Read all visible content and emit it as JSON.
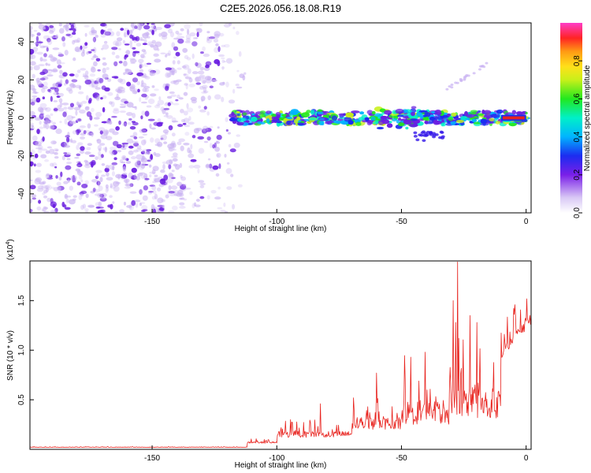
{
  "title": "C2E5.2026.056.18.08.R19",
  "colors": {
    "axis": "#000000",
    "snr_line": "#e8231e",
    "scatter_dense": "#6a1ee0",
    "scatter_light": "#c9b2f2",
    "band_core": "#e8231e"
  },
  "chart_data": [
    {
      "type": "heatmap",
      "name": "spectrogram",
      "title": "C2E5.2026.056.18.08.R19",
      "xlabel": "Height of straight line (km)",
      "ylabel": "Frequency (Hz)",
      "xlim": [
        -199,
        2
      ],
      "ylim": [
        -50,
        50
      ],
      "xticks": [
        "-150",
        "-100",
        "-50",
        "0"
      ],
      "xtick_values": [
        -150,
        -100,
        -50,
        0
      ],
      "yticks": [
        "-40",
        "-20",
        "0",
        "20",
        "40"
      ],
      "ytick_values": [
        -40,
        -20,
        0,
        20,
        40
      ],
      "colorbar": {
        "label": "Normalized spectral amplitude",
        "range": [
          0,
          1
        ],
        "ticks": [
          "0.0",
          "0.2",
          "0.4",
          "0.6",
          "0.8"
        ],
        "tick_values": [
          0.0,
          0.2,
          0.4,
          0.6,
          0.8
        ]
      },
      "features": {
        "noise_region_x": [
          -199,
          -112
        ],
        "signal_band_x": [
          -118,
          0
        ],
        "signal_band_freq_hz": 0,
        "peak_x": [
          -10,
          0
        ],
        "peak_amplitude": 1.0,
        "secondary_trace_x": [
          -32,
          -15
        ],
        "secondary_trace_freq_hz": [
          15,
          29
        ]
      }
    },
    {
      "type": "line",
      "name": "snr",
      "xlabel": "Height of straight line (km)",
      "ylabel": "SNR (10 * v/v)",
      "yscale_label": "(x10",
      "yscale_exp": "4",
      "xlim": [
        -199,
        2
      ],
      "ylim": [
        0,
        1.9
      ],
      "xticks": [
        "-150",
        "-100",
        "-50",
        "0"
      ],
      "xtick_values": [
        -150,
        -100,
        -50,
        0
      ],
      "yticks": [
        "0.5",
        "1.0",
        "1.5"
      ],
      "ytick_values": [
        0.5,
        1.0,
        1.5
      ],
      "segments": [
        {
          "x": [
            -199,
            -112
          ],
          "baseline": 0.02,
          "noise": 0.008
        },
        {
          "x": [
            -112,
            -100
          ],
          "baseline": 0.06,
          "noise": 0.05
        },
        {
          "x": [
            -100,
            -70
          ],
          "baseline": 0.12,
          "noise": 0.18
        },
        {
          "x": [
            -70,
            -50
          ],
          "baseline": 0.2,
          "noise": 0.35
        },
        {
          "x": [
            -50,
            -30
          ],
          "baseline": 0.25,
          "noise": 0.7
        },
        {
          "x": [
            -30,
            -10
          ],
          "baseline": 0.3,
          "noise": 0.9
        },
        {
          "x": [
            -10,
            2
          ],
          "baseline": 0.9,
          "noise": 0.4
        }
      ],
      "peaks": [
        {
          "x": -27.5,
          "y": 1.89
        },
        {
          "x": -29.2,
          "y": 1.5
        },
        {
          "x": -22.5,
          "y": 1.35
        },
        {
          "x": -19.8,
          "y": 1.28
        },
        {
          "x": -28.2,
          "y": 1.28
        },
        {
          "x": -1.5,
          "y": 1.25
        },
        {
          "x": 1.5,
          "y": 1.35
        },
        {
          "x": -40.5,
          "y": 0.98
        },
        {
          "x": -46.2,
          "y": 0.93
        },
        {
          "x": -60.0,
          "y": 0.77
        },
        {
          "x": -69.2,
          "y": 0.52
        },
        {
          "x": -82.5,
          "y": 0.46
        }
      ]
    }
  ]
}
